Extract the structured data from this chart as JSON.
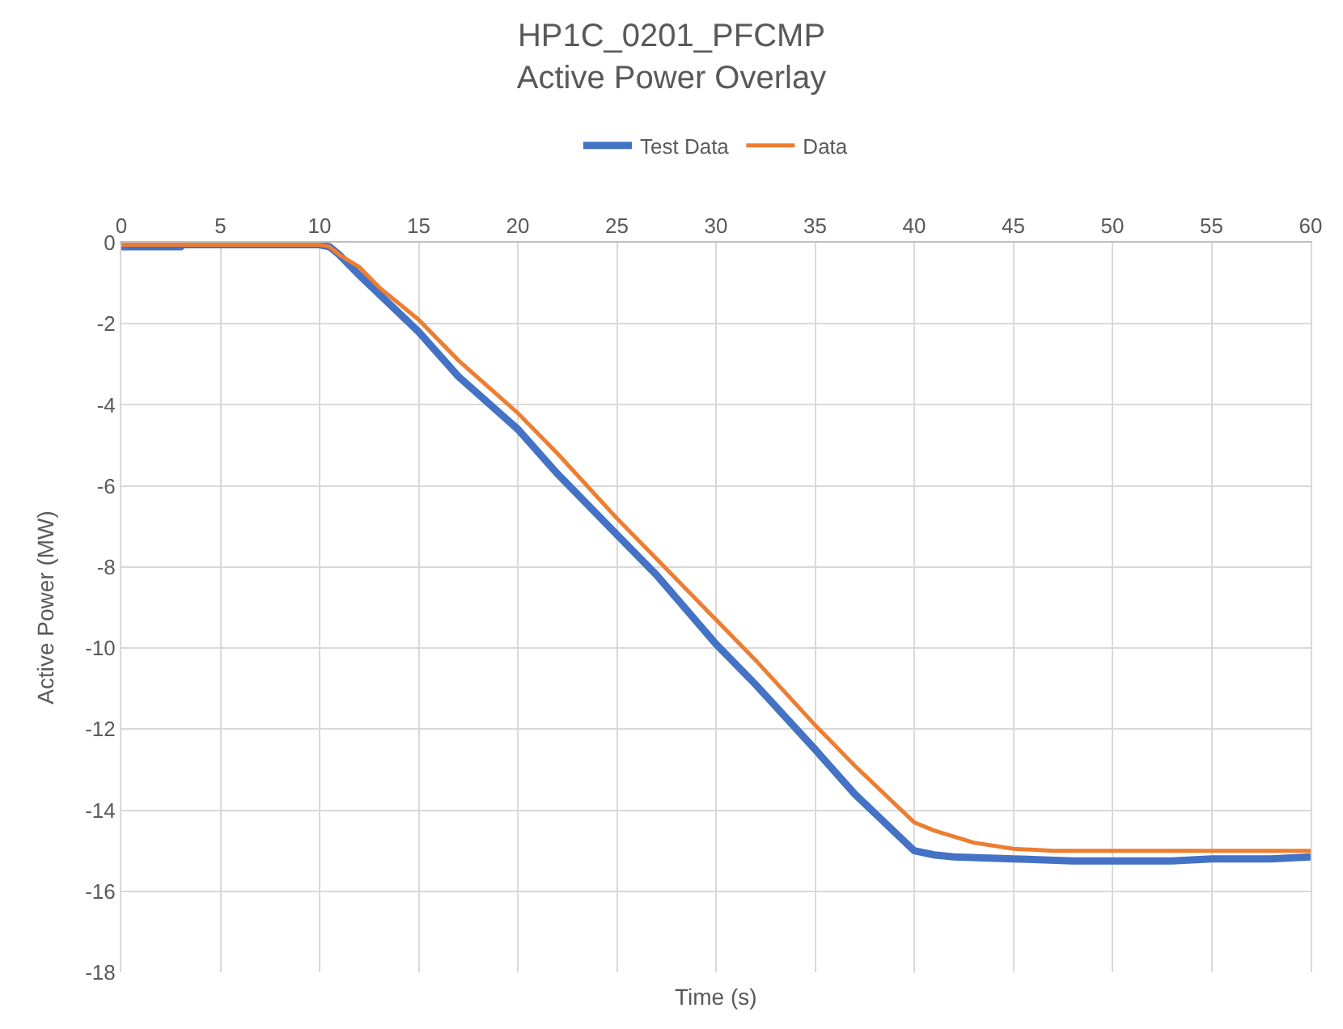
{
  "chart_data": {
    "type": "line",
    "title": "HP1C_0201_PFCMP\nActive Power Overlay",
    "xlabel": "Time (s)",
    "ylabel": "Active Power (MW)",
    "xlim": [
      0,
      60
    ],
    "xticks": [
      0,
      5,
      10,
      15,
      20,
      25,
      30,
      35,
      40,
      45,
      50,
      55,
      60
    ],
    "ylim": [
      -18,
      0
    ],
    "yticks": [
      -18,
      -16,
      -14,
      -12,
      -10,
      -8,
      -6,
      -4,
      -2,
      0
    ],
    "grid": true,
    "legend": "top",
    "marker": "none",
    "line_style": "solid",
    "series": [
      {
        "name": "Test Data",
        "color": "#4472c4",
        "x": [
          0,
          3,
          3.1,
          10,
          10.5,
          11,
          12,
          15,
          17,
          20,
          22,
          25,
          27,
          30,
          32,
          35,
          37,
          40,
          41,
          42,
          45,
          48,
          50,
          53,
          55,
          58,
          60
        ],
        "values": [
          -0.1,
          -0.1,
          -0.05,
          -0.05,
          -0.1,
          -0.3,
          -0.8,
          -2.2,
          -3.3,
          -4.6,
          -5.7,
          -7.2,
          -8.2,
          -9.9,
          -10.9,
          -12.5,
          -13.6,
          -15.0,
          -15.1,
          -15.15,
          -15.2,
          -15.25,
          -15.25,
          -15.25,
          -15.2,
          -15.2,
          -15.15
        ]
      },
      {
        "name": "Data",
        "color": "#ed7d31",
        "x": [
          0,
          10,
          10.5,
          11,
          12,
          13,
          15,
          17,
          20,
          22,
          25,
          27,
          30,
          32,
          35,
          37,
          40,
          41,
          42,
          43,
          45,
          47,
          50,
          55,
          60
        ],
        "values": [
          -0.05,
          -0.05,
          -0.1,
          -0.3,
          -0.6,
          -1.1,
          -1.9,
          -2.9,
          -4.2,
          -5.2,
          -6.8,
          -7.8,
          -9.3,
          -10.3,
          -11.9,
          -12.9,
          -14.3,
          -14.5,
          -14.65,
          -14.8,
          -14.95,
          -15.0,
          -15.0,
          -15.0,
          -15.0
        ]
      }
    ]
  }
}
